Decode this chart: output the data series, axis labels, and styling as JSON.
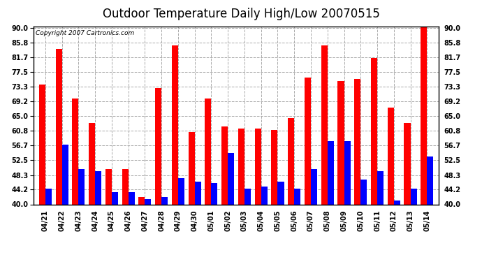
{
  "title": "Outdoor Temperature Daily High/Low 20070515",
  "copyright": "Copyright 2007 Cartronics.com",
  "categories": [
    "04/21",
    "04/22",
    "04/23",
    "04/24",
    "04/25",
    "04/26",
    "04/27",
    "04/28",
    "04/29",
    "04/30",
    "05/01",
    "05/02",
    "05/03",
    "05/04",
    "05/05",
    "05/06",
    "05/07",
    "05/08",
    "05/09",
    "05/10",
    "05/11",
    "05/12",
    "05/13",
    "05/14"
  ],
  "highs": [
    74.0,
    84.0,
    70.0,
    63.0,
    50.0,
    50.0,
    42.0,
    73.0,
    85.0,
    60.5,
    70.0,
    62.0,
    61.5,
    61.5,
    61.0,
    64.5,
    76.0,
    85.0,
    75.0,
    75.5,
    81.5,
    67.5,
    63.0,
    90.5
  ],
  "lows": [
    44.5,
    57.0,
    50.0,
    49.5,
    43.5,
    43.5,
    41.5,
    42.0,
    47.5,
    46.5,
    46.0,
    54.5,
    44.5,
    45.0,
    46.5,
    44.5,
    50.0,
    58.0,
    58.0,
    47.0,
    49.5,
    41.0,
    44.5,
    53.5
  ],
  "high_color": "#ff0000",
  "low_color": "#0000ff",
  "bg_color": "#ffffff",
  "grid_color": "#aaaaaa",
  "yticks": [
    40.0,
    44.2,
    48.3,
    52.5,
    56.7,
    60.8,
    65.0,
    69.2,
    73.3,
    77.5,
    81.7,
    85.8,
    90.0
  ],
  "ylim": [
    40.0,
    90.5
  ],
  "ybase": 40.0,
  "bar_width": 0.38,
  "title_fontsize": 12,
  "tick_fontsize": 7,
  "copyright_fontsize": 6.5
}
